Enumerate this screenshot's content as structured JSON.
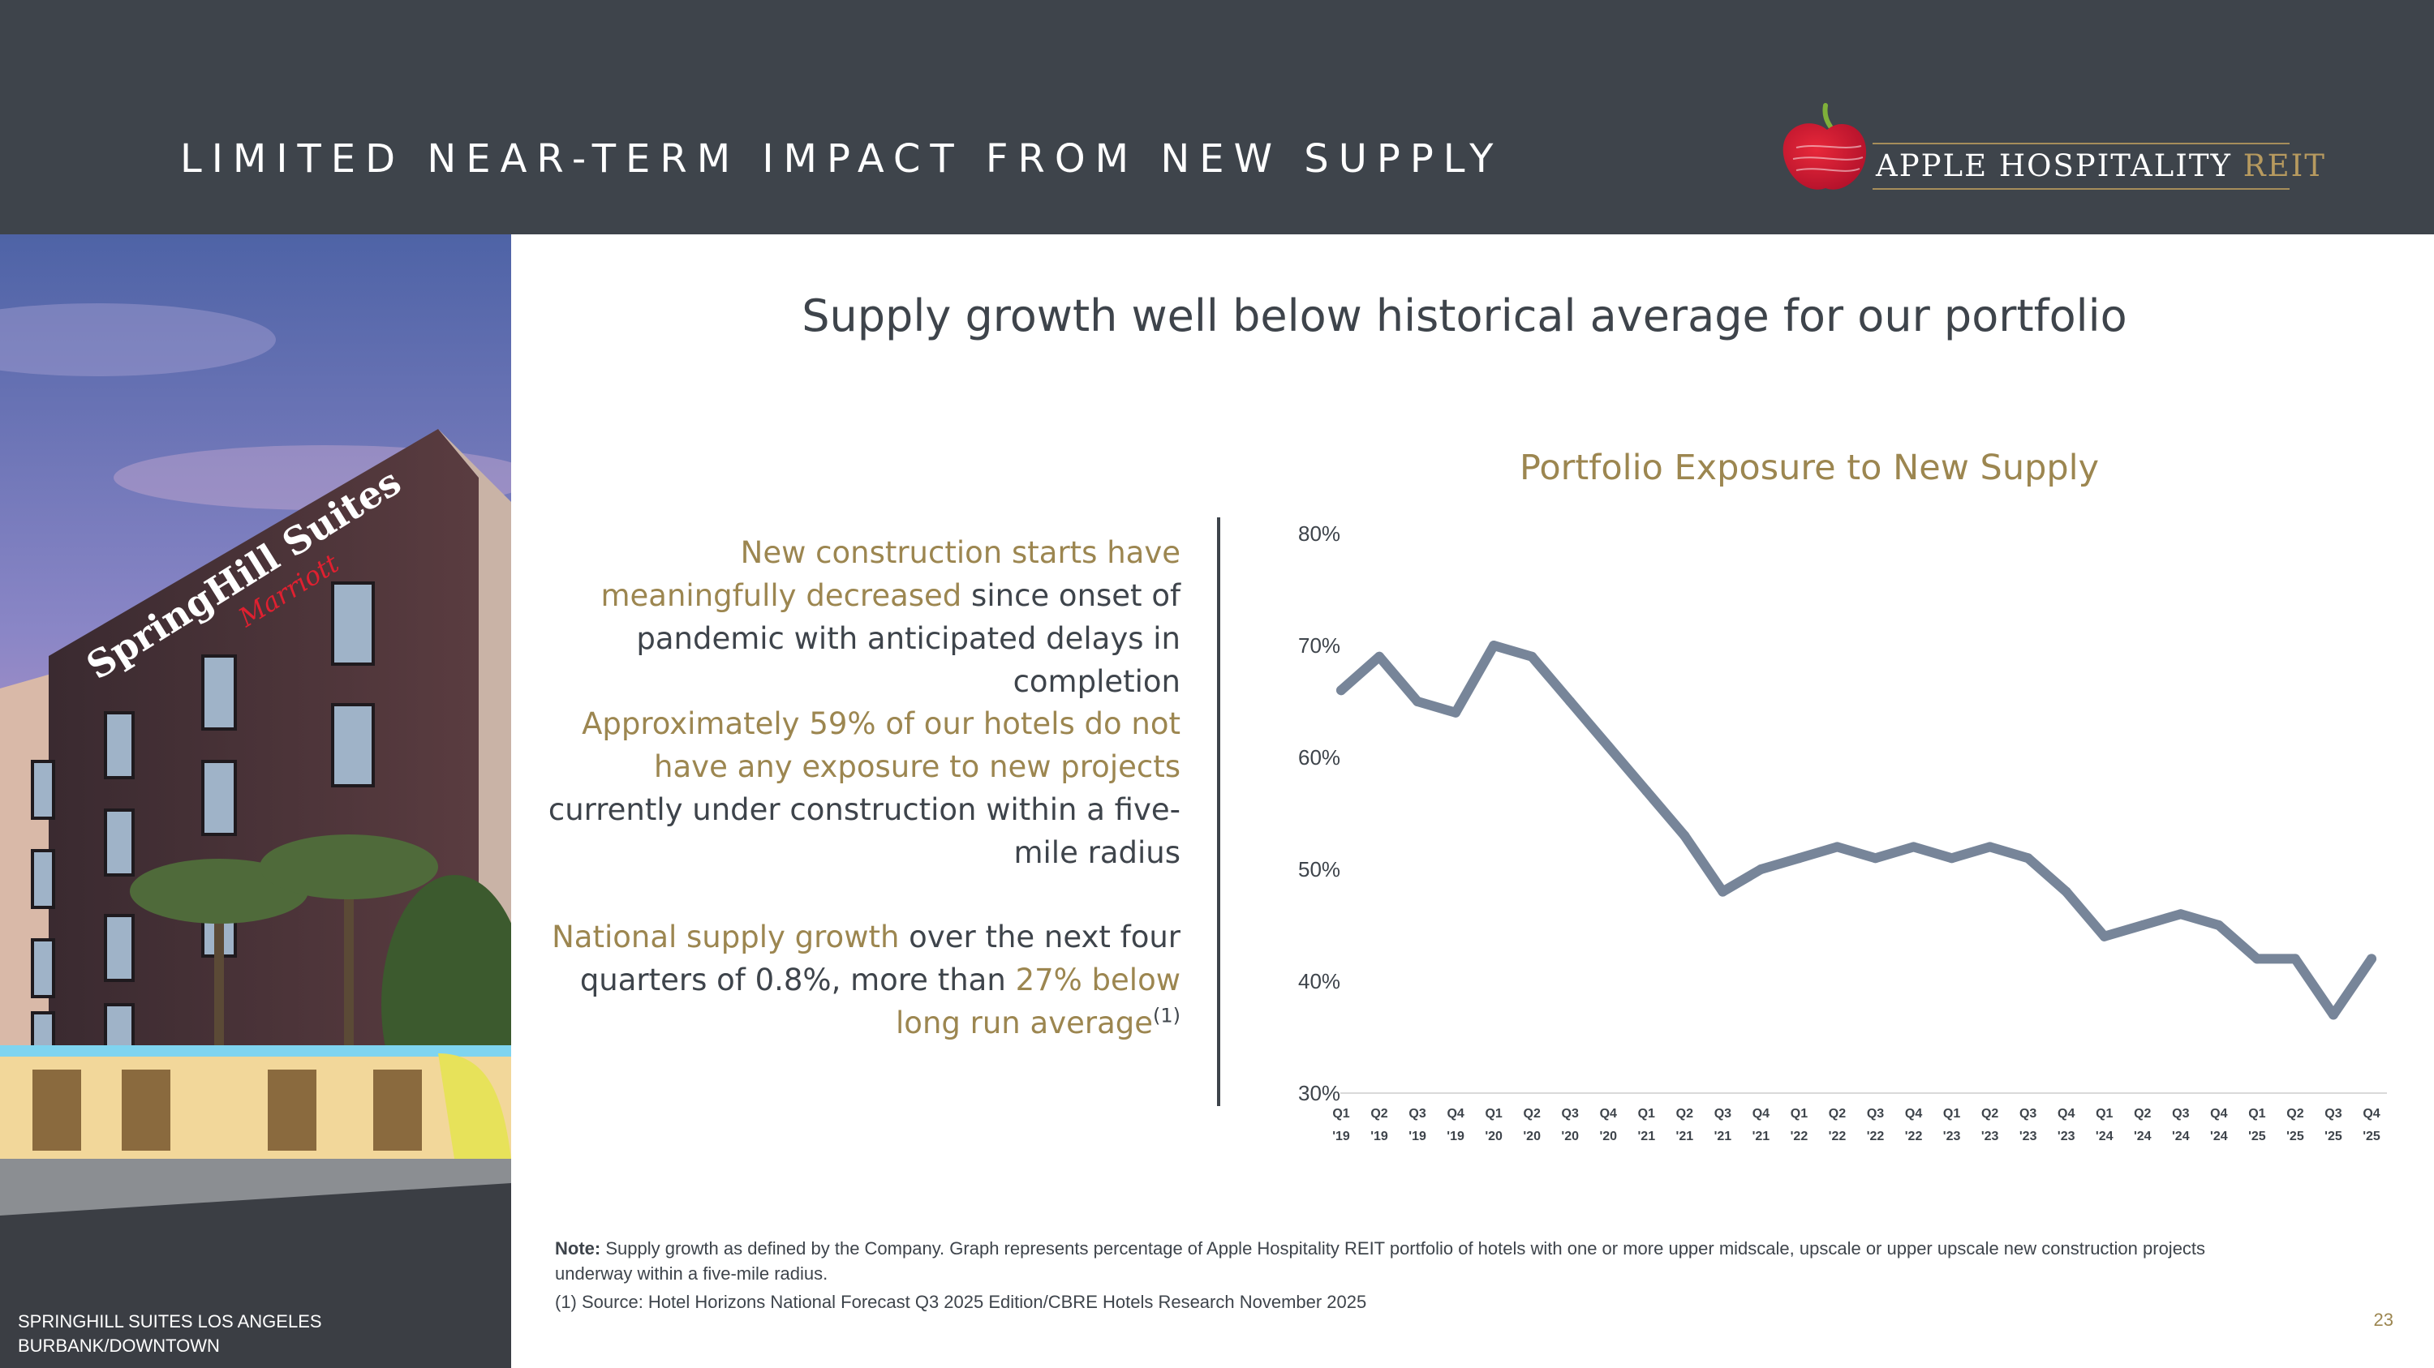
{
  "header": {
    "title": "LIMITED NEAR-TERM IMPACT FROM NEW SUPPLY",
    "logo_text": "APPLE HOSPITALITY",
    "logo_text_accent": "REIT"
  },
  "photo": {
    "caption_line1": "SPRINGHILL SUITES LOS ANGELES",
    "caption_line2": "BURBANK/DOWNTOWN",
    "sign_text": "SpringHill Suites",
    "sign_brand": "Marriott"
  },
  "subtitle": "Supply growth well below historical average for our portfolio",
  "bullets": [
    {
      "highlight": "New construction starts have meaningfully decreased",
      "text": " since onset of pandemic with anticipated delays in completion"
    },
    {
      "highlight": "Approximately 59% of our hotels do not have any exposure to new projects",
      "text": " currently under construction within a five-mile radius"
    },
    {
      "highlight": "National supply growth",
      "text": " over the next four quarters of 0.8%, more than ",
      "highlight2": "27% below long run average",
      "sup": "(1)"
    }
  ],
  "chart_data": {
    "type": "line",
    "title": "Portfolio Exposure to New Supply",
    "xlabel": "",
    "ylabel": "",
    "ylim": [
      30,
      80
    ],
    "yticks": [
      "30%",
      "40%",
      "50%",
      "60%",
      "70%",
      "80%"
    ],
    "ytick_values": [
      30,
      40,
      50,
      60,
      70,
      80
    ],
    "grid": false,
    "color": "#778599",
    "categories": [
      [
        "Q1",
        "'19"
      ],
      [
        "Q2",
        "'19"
      ],
      [
        "Q3",
        "'19"
      ],
      [
        "Q4",
        "'19"
      ],
      [
        "Q1",
        "'20"
      ],
      [
        "Q2",
        "'20"
      ],
      [
        "Q3",
        "'20"
      ],
      [
        "Q4",
        "'20"
      ],
      [
        "Q1",
        "'21"
      ],
      [
        "Q2",
        "'21"
      ],
      [
        "Q3",
        "'21"
      ],
      [
        "Q4",
        "'21"
      ],
      [
        "Q1",
        "'22"
      ],
      [
        "Q2",
        "'22"
      ],
      [
        "Q3",
        "'22"
      ],
      [
        "Q4",
        "'22"
      ],
      [
        "Q1",
        "'23"
      ],
      [
        "Q2",
        "'23"
      ],
      [
        "Q3",
        "'23"
      ],
      [
        "Q4",
        "'23"
      ],
      [
        "Q1",
        "'24"
      ],
      [
        "Q2",
        "'24"
      ],
      [
        "Q3",
        "'24"
      ],
      [
        "Q4",
        "'24"
      ],
      [
        "Q1",
        "'25"
      ],
      [
        "Q2",
        "'25"
      ],
      [
        "Q3",
        "'25"
      ],
      [
        "Q4",
        "'25"
      ]
    ],
    "values": [
      66,
      69,
      65,
      64,
      70,
      69,
      65,
      61,
      57,
      53,
      48,
      50,
      51,
      52,
      51,
      52,
      51,
      52,
      51,
      48,
      44,
      45,
      46,
      45,
      42,
      42,
      37,
      42
    ]
  },
  "note": {
    "label": "Note:",
    "text": " Supply growth as defined by the Company. Graph represents percentage of Apple Hospitality REIT portfolio of hotels with one or more upper midscale, upscale or upper upscale new construction projects underway within a five-mile radius.",
    "source": "(1) Source: Hotel Horizons National Forecast Q3 2025 Edition/CBRE Hotels Research November 2025"
  },
  "page_number": "23"
}
